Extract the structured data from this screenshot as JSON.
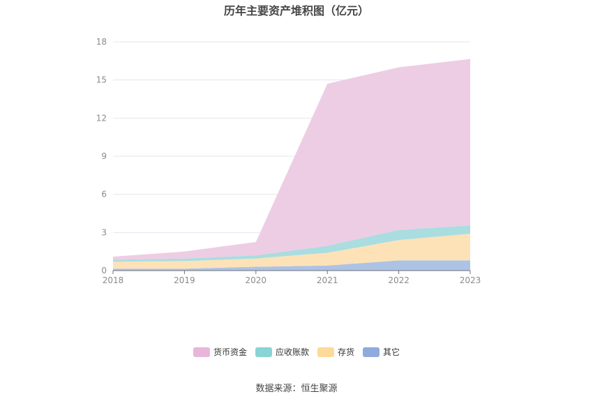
{
  "chart_data": {
    "type": "area",
    "stacked": true,
    "title": "历年主要资产堆积图（亿元）",
    "x": [
      "2018",
      "2019",
      "2020",
      "2021",
      "2022",
      "2023"
    ],
    "ylim": [
      0,
      18
    ],
    "yticks": [
      "0",
      "3",
      "6",
      "9",
      "12",
      "15",
      "18"
    ],
    "grid": true,
    "legend_position": "bottom",
    "series": [
      {
        "name": "其它",
        "color": "#adc3e6",
        "legend_color": "#8faadc",
        "values": [
          0.15,
          0.15,
          0.3,
          0.4,
          0.8,
          0.8
        ]
      },
      {
        "name": "存货",
        "color": "#fde2b7",
        "legend_color": "#fdd99a",
        "values": [
          0.55,
          0.6,
          0.65,
          1.0,
          1.6,
          2.1
        ]
      },
      {
        "name": "应收账款",
        "color": "#a9dde0",
        "legend_color": "#8ad4d6",
        "values": [
          0.15,
          0.2,
          0.25,
          0.55,
          0.8,
          0.65
        ]
      },
      {
        "name": "货币资金",
        "color": "#edcde4",
        "legend_color": "#e8b6d9",
        "values": [
          0.25,
          0.55,
          1.05,
          12.75,
          12.8,
          13.1
        ]
      }
    ],
    "legend_order": [
      "货币资金",
      "应收账款",
      "存货",
      "其它"
    ]
  },
  "source": "数据来源：恒生聚源"
}
